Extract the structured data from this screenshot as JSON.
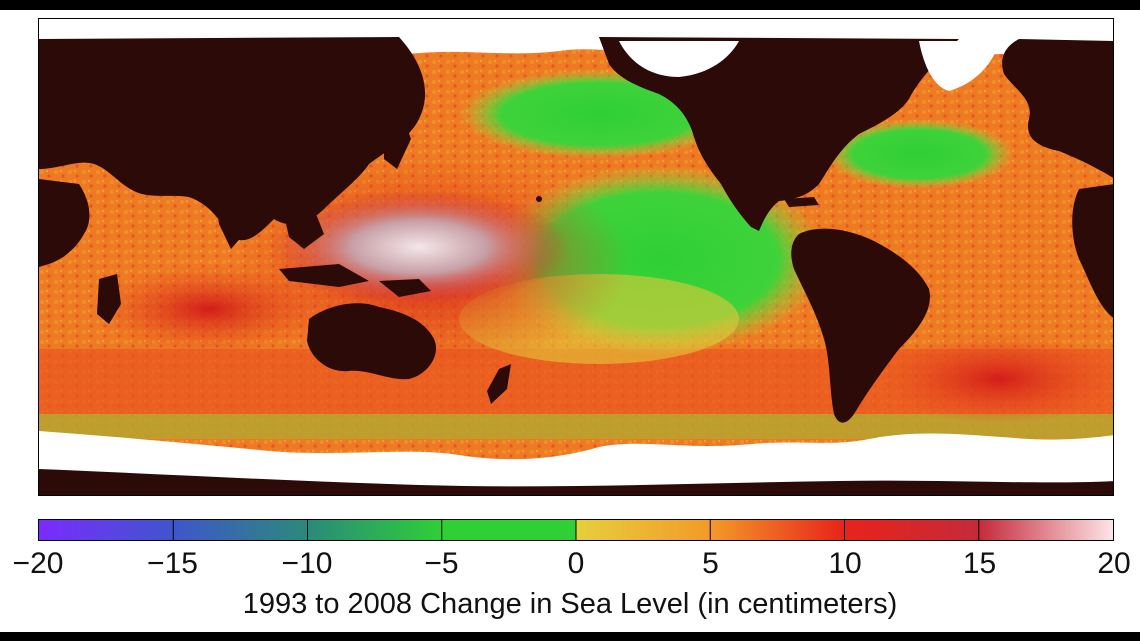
{
  "map": {
    "caption": "1993 to 2008 Change in Sea Level (in centimeters)",
    "land_color": "#2b0a08",
    "ice_color": "#ffffff"
  },
  "legend": {
    "min": -20,
    "max": 20,
    "ticks": [
      "−20",
      "−15",
      "−10",
      "−5",
      "0",
      "5",
      "10",
      "15",
      "20"
    ],
    "colors": [
      "#7b2bff",
      "#3f56cc",
      "#2a8a7a",
      "#2fcf36",
      "#e6cf3c",
      "#f39a28",
      "#e8231a",
      "#c52a3a",
      "#fde4e8"
    ]
  }
}
